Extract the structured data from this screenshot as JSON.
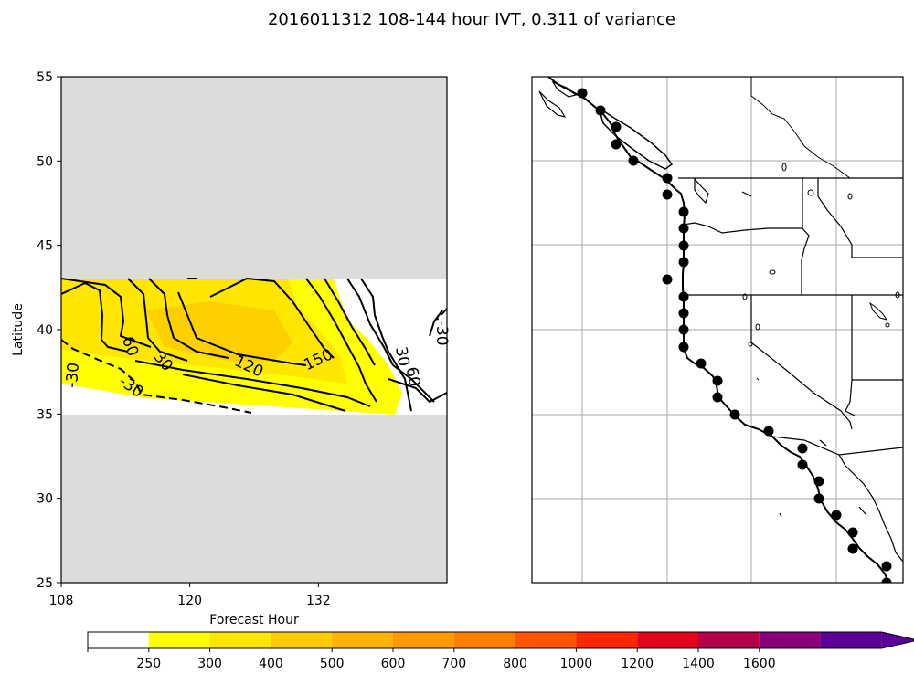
{
  "title": "2016011312 108-144 hour IVT, 0.311 of variance",
  "chart_data": [
    {
      "type": "contour",
      "panel": "left",
      "xlabel": "Forecast Hour",
      "ylabel": "Latitude",
      "xlim": [
        108,
        144
      ],
      "ylim": [
        25,
        55
      ],
      "x_ticks": [
        "108",
        "120",
        "132"
      ],
      "x_tick_values": [
        108,
        120,
        132
      ],
      "y_ticks": [
        "25",
        "30",
        "35",
        "40",
        "45",
        "50",
        "55"
      ],
      "y_tick_values": [
        25,
        30,
        35,
        40,
        45,
        50,
        55
      ],
      "data_lat_range": [
        35,
        43
      ],
      "no_data_color": "#dcdcdc",
      "contour_labels": [
        {
          "text": "-30",
          "x": 109.1,
          "y": 37.3,
          "rotate": -85
        },
        {
          "text": "-30",
          "x": 114.5,
          "y": 36.6,
          "rotate": 35
        },
        {
          "text": "60",
          "x": 114.4,
          "y": 39.0,
          "rotate": 70
        },
        {
          "text": "30",
          "x": 117.5,
          "y": 38.1,
          "rotate": 50
        },
        {
          "text": "120",
          "x": 125.5,
          "y": 37.8,
          "rotate": 25
        },
        {
          "text": "150",
          "x": 132.0,
          "y": 38.2,
          "rotate": -25
        },
        {
          "text": "30",
          "x": 139.8,
          "y": 38.4,
          "rotate": 80
        },
        {
          "text": "60",
          "x": 140.8,
          "y": 37.2,
          "rotate": 80
        },
        {
          "text": "-30",
          "x": 143.5,
          "y": 39.8,
          "rotate": 90
        }
      ]
    },
    {
      "type": "map",
      "panel": "right",
      "region": "US West Coast",
      "gridlines": true,
      "station_points_count": 28
    }
  ],
  "colorbar": {
    "ticks": [
      "250",
      "300",
      "400",
      "500",
      "600",
      "700",
      "800",
      "1000",
      "1200",
      "1400",
      "1600"
    ],
    "colors": [
      "#ffffff",
      "#ffff00",
      "#ffe600",
      "#ffcc00",
      "#ffb300",
      "#ff9900",
      "#ff7f00",
      "#ff5400",
      "#ff2600",
      "#e5001b",
      "#b4004a",
      "#87007a",
      "#5a0096"
    ],
    "extend": "max"
  }
}
